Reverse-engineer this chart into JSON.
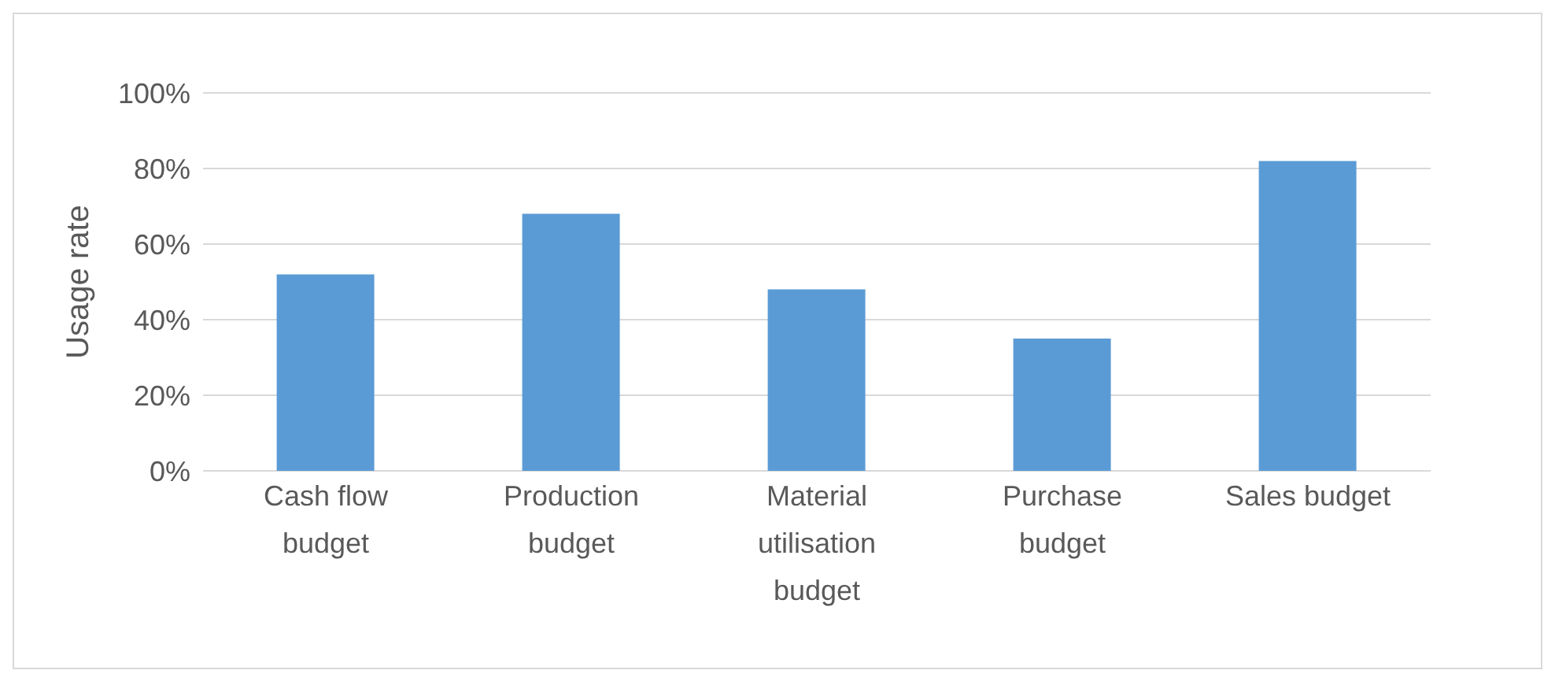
{
  "chart_data": {
    "type": "bar",
    "ylabel": "Usage rate",
    "categories": [
      "Cash flow budget",
      "Production budget",
      "Material utilisation budget",
      "Purchase budget",
      "Sales budget"
    ],
    "values": [
      0.52,
      0.68,
      0.48,
      0.35,
      0.82
    ],
    "color": "#5b9bd5",
    "ylim": [
      0,
      1
    ],
    "yticks": [
      {
        "value": 0,
        "label": "0%"
      },
      {
        "value": 0.2,
        "label": "20%"
      },
      {
        "value": 0.4,
        "label": "40%"
      },
      {
        "value": 0.6,
        "label": "60%"
      },
      {
        "value": 0.8,
        "label": "80%"
      },
      {
        "value": 1,
        "label": "100%"
      }
    ],
    "grid": "y",
    "legend": false
  }
}
